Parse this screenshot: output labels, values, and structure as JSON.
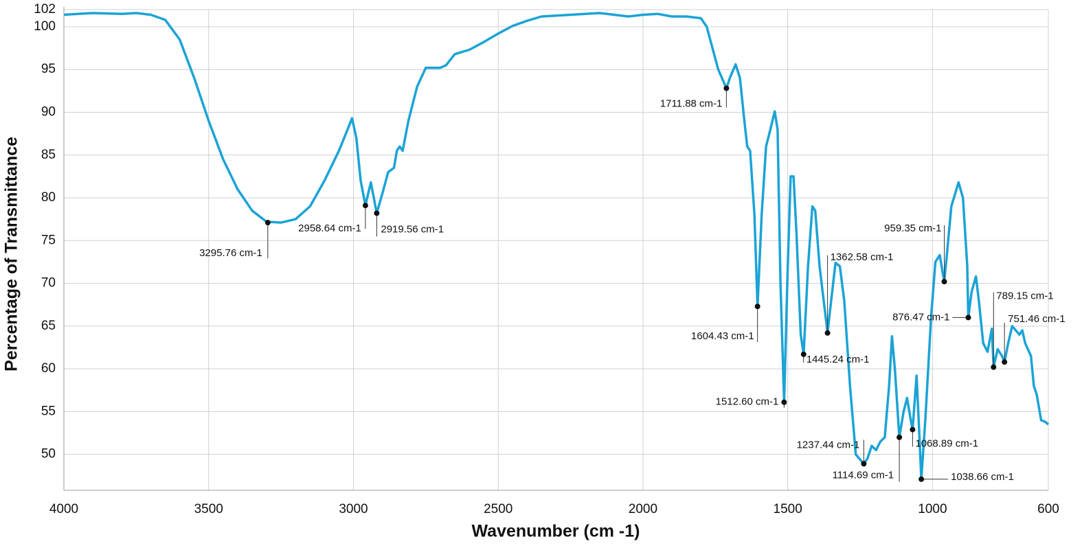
{
  "chart_data": {
    "type": "line",
    "xlabel": "Wavenumber (cm -1)",
    "ylabel": "Percentage of Transmittance",
    "color": "#1ba3d6",
    "grid": true,
    "xlim": [
      4000,
      600
    ],
    "ylim": [
      45.8,
      102
    ],
    "xticks": [
      4000,
      3500,
      3000,
      2500,
      2000,
      1500,
      1000,
      600
    ],
    "yticks": [
      50,
      55,
      60,
      65,
      70,
      75,
      80,
      85,
      90,
      95,
      100,
      102
    ],
    "x": [
      4000,
      3900,
      3800,
      3750,
      3700,
      3650,
      3600,
      3550,
      3500,
      3450,
      3400,
      3350,
      3300,
      3250,
      3200,
      3150,
      3100,
      3050,
      3020,
      3005,
      2990,
      2975,
      2958.64,
      2940,
      2919.56,
      2900,
      2880,
      2860,
      2850,
      2840,
      2830,
      2810,
      2780,
      2750,
      2700,
      2680,
      2650,
      2600,
      2550,
      2500,
      2450,
      2400,
      2350,
      2300,
      2250,
      2200,
      2150,
      2100,
      2050,
      2000,
      1950,
      1900,
      1850,
      1800,
      1780,
      1760,
      1740,
      1711.88,
      1700,
      1680,
      1665,
      1650,
      1640,
      1630,
      1615,
      1604.43,
      1590,
      1575,
      1560,
      1545,
      1535,
      1525,
      1512.6,
      1500,
      1490,
      1480,
      1470,
      1455,
      1445.24,
      1430,
      1415,
      1405,
      1390,
      1362.58,
      1350,
      1335,
      1320,
      1305,
      1285,
      1265,
      1237.44,
      1225,
      1210,
      1195,
      1180,
      1165,
      1150,
      1140,
      1130,
      1114.69,
      1100,
      1088,
      1075,
      1068.89,
      1055,
      1045,
      1038.66,
      1025,
      1005,
      990,
      975,
      959.35,
      950,
      935,
      910,
      895,
      880,
      876.47,
      865,
      850,
      840,
      825,
      810,
      795,
      789.15,
      775,
      760,
      751.46,
      740,
      725,
      700,
      690,
      680,
      660,
      650,
      640,
      625,
      610,
      600
    ],
    "values": [
      101.4,
      101.6,
      101.5,
      101.6,
      101.4,
      100.8,
      98.5,
      94,
      89,
      84.5,
      81,
      78.5,
      77.2,
      77.1,
      77.5,
      79,
      82,
      85.5,
      88,
      89.3,
      87,
      82,
      79.1,
      81.8,
      78.2,
      80.5,
      83,
      83.5,
      85.5,
      86,
      85.5,
      89,
      93,
      95.2,
      95.2,
      95.5,
      96.8,
      97.3,
      98.2,
      99.2,
      100.1,
      100.7,
      101.2,
      101.3,
      101.4,
      101.5,
      101.6,
      101.4,
      101.2,
      101.4,
      101.5,
      101.2,
      101.2,
      101,
      100,
      97.5,
      95,
      92.8,
      94,
      95.6,
      94,
      89,
      86,
      85.5,
      78,
      67.3,
      78,
      86,
      88,
      90.1,
      88,
      70,
      56.1,
      72,
      82.5,
      82.5,
      76,
      64,
      61.7,
      72,
      79,
      78.5,
      72,
      64.2,
      68,
      72.4,
      72,
      68,
      58,
      50,
      48.9,
      49.5,
      51,
      50.5,
      51.5,
      52,
      58,
      63.8,
      60,
      52,
      55,
      56.6,
      54,
      52.9,
      59.2,
      52,
      47.1,
      54,
      66,
      72.5,
      73.3,
      70.2,
      73.5,
      79,
      81.8,
      80,
      72,
      66,
      69,
      70.8,
      68,
      63,
      62,
      64.7,
      60.2,
      62.3,
      61.5,
      60.8,
      62.8,
      65,
      64,
      64.5,
      63,
      61.5,
      58,
      57,
      54,
      53.8,
      53.5
    ],
    "annotations": [
      {
        "label": "3295.76 cm-1",
        "x": 3295.76,
        "y": 77.1
      },
      {
        "label": "2958.64 cm-1",
        "x": 2958.64,
        "y": 79.1
      },
      {
        "label": "2919.56 cm-1",
        "x": 2919.56,
        "y": 78.2
      },
      {
        "label": "1711.88 cm-1",
        "x": 1711.88,
        "y": 92.8
      },
      {
        "label": "1604.43 cm-1",
        "x": 1604.43,
        "y": 67.3
      },
      {
        "label": "1512.60 cm-1",
        "x": 1512.6,
        "y": 56.1
      },
      {
        "label": "1445.24 cm-1",
        "x": 1445.24,
        "y": 61.7
      },
      {
        "label": "1362.58 cm-1",
        "x": 1362.58,
        "y": 64.2
      },
      {
        "label": "1237.44 cm-1",
        "x": 1237.44,
        "y": 48.9
      },
      {
        "label": "1114.69 cm-1",
        "x": 1114.69,
        "y": 52
      },
      {
        "label": "1068.89 cm-1",
        "x": 1068.89,
        "y": 52.9
      },
      {
        "label": "1038.66 cm-1",
        "x": 1038.66,
        "y": 47.1
      },
      {
        "label": "959.35 cm-1",
        "x": 959.35,
        "y": 70.2
      },
      {
        "label": "876.47 cm-1",
        "x": 876.47,
        "y": 66
      },
      {
        "label": "789.15 cm-1",
        "x": 789.15,
        "y": 60.2
      },
      {
        "label": "751.46 cm-1",
        "x": 751.46,
        "y": 60.8
      }
    ]
  }
}
